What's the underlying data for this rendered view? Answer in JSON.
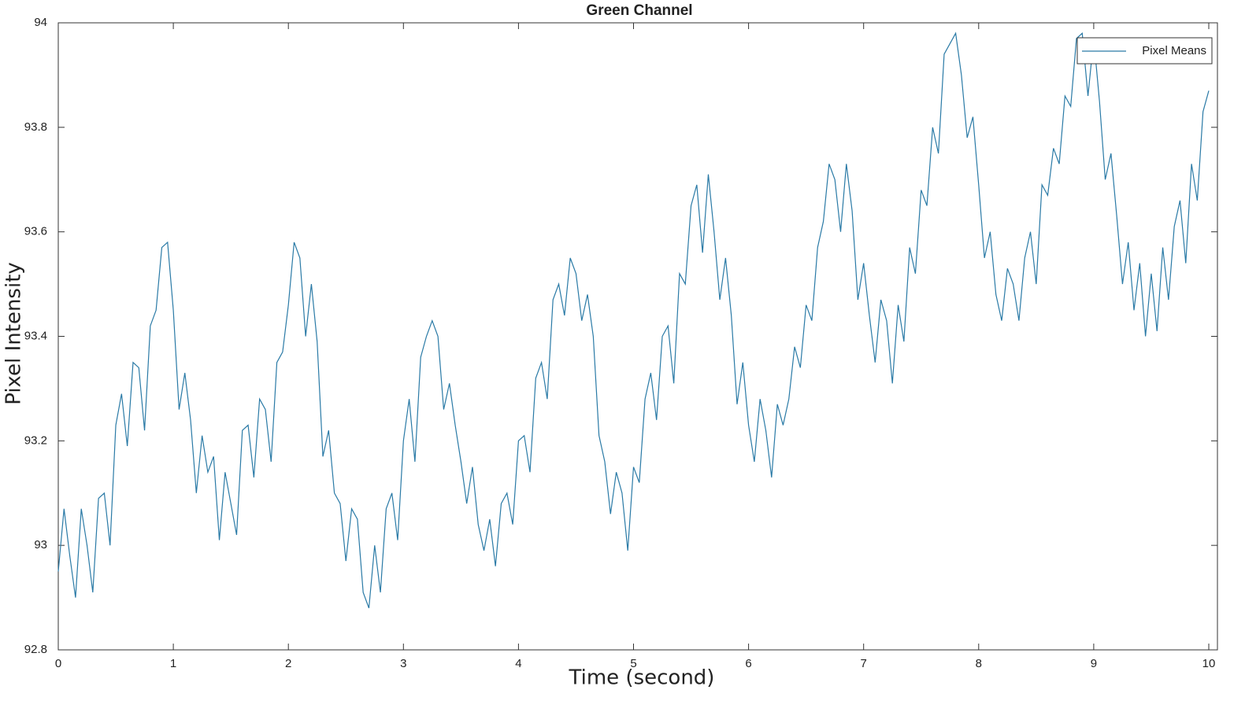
{
  "chart_data": {
    "type": "line",
    "title": "Green Channel",
    "x_label": "Time (second)",
    "y_label": "Pixel Intensity",
    "x": [
      0,
      0.05,
      0.1,
      0.15,
      0.2,
      0.25,
      0.3,
      0.35,
      0.4,
      0.45,
      0.5,
      0.55,
      0.6,
      0.65,
      0.7,
      0.75,
      0.8,
      0.85,
      0.9,
      0.95,
      1,
      1.05,
      1.1,
      1.15,
      1.2,
      1.25,
      1.3,
      1.35,
      1.4,
      1.45,
      1.5,
      1.55,
      1.6,
      1.65,
      1.7,
      1.75,
      1.8,
      1.85,
      1.9,
      1.95,
      2,
      2.05,
      2.1,
      2.15,
      2.2,
      2.25,
      2.3,
      2.35,
      2.4,
      2.45,
      2.5,
      2.55,
      2.6,
      2.65,
      2.7,
      2.75,
      2.8,
      2.85,
      2.9,
      2.95,
      3,
      3.05,
      3.1,
      3.15,
      3.2,
      3.25,
      3.3,
      3.35,
      3.4,
      3.45,
      3.5,
      3.55,
      3.6,
      3.65,
      3.7,
      3.75,
      3.8,
      3.85,
      3.9,
      3.95,
      4,
      4.05,
      4.1,
      4.15,
      4.2,
      4.25,
      4.3,
      4.35,
      4.4,
      4.45,
      4.5,
      4.55,
      4.6,
      4.65,
      4.7,
      4.75,
      4.8,
      4.85,
      4.9,
      4.95,
      5,
      5.05,
      5.1,
      5.15,
      5.2,
      5.25,
      5.3,
      5.35,
      5.4,
      5.45,
      5.5,
      5.55,
      5.6,
      5.65,
      5.7,
      5.75,
      5.8,
      5.85,
      5.9,
      5.95,
      6,
      6.05,
      6.1,
      6.15,
      6.2,
      6.25,
      6.3,
      6.35,
      6.4,
      6.45,
      6.5,
      6.55,
      6.6,
      6.65,
      6.7,
      6.75,
      6.8,
      6.85,
      6.9,
      6.95,
      7,
      7.05,
      7.1,
      7.15,
      7.2,
      7.25,
      7.3,
      7.35,
      7.4,
      7.45,
      7.5,
      7.55,
      7.6,
      7.65,
      7.7,
      7.75,
      7.8,
      7.85,
      7.9,
      7.95,
      8,
      8.05,
      8.1,
      8.15,
      8.2,
      8.25,
      8.3,
      8.35,
      8.4,
      8.45,
      8.5,
      8.55,
      8.6,
      8.65,
      8.7,
      8.75,
      8.8,
      8.85,
      8.9,
      8.95,
      9,
      9.05,
      9.1,
      9.15,
      9.2,
      9.25,
      9.3,
      9.35,
      9.4,
      9.45,
      9.5,
      9.55,
      9.6,
      9.65,
      9.7,
      9.75,
      9.8,
      9.85,
      9.9,
      9.95,
      10
    ],
    "series": [
      {
        "name": "Pixel Means",
        "color": "#2a7aa6",
        "values": [
          92.95,
          93.07,
          92.98,
          92.9,
          93.07,
          93.0,
          92.91,
          93.09,
          93.1,
          93.0,
          93.23,
          93.29,
          93.19,
          93.35,
          93.34,
          93.22,
          93.42,
          93.45,
          93.57,
          93.58,
          93.45,
          93.26,
          93.33,
          93.24,
          93.1,
          93.21,
          93.14,
          93.17,
          93.01,
          93.14,
          93.08,
          93.02,
          93.22,
          93.23,
          93.13,
          93.28,
          93.26,
          93.16,
          93.35,
          93.37,
          93.46,
          93.58,
          93.55,
          93.4,
          93.5,
          93.39,
          93.17,
          93.22,
          93.1,
          93.08,
          92.97,
          93.07,
          93.05,
          92.91,
          92.88,
          93.0,
          92.91,
          93.07,
          93.1,
          93.01,
          93.2,
          93.28,
          93.16,
          93.36,
          93.4,
          93.43,
          93.4,
          93.26,
          93.31,
          93.23,
          93.16,
          93.08,
          93.15,
          93.04,
          92.99,
          93.05,
          92.96,
          93.08,
          93.1,
          93.04,
          93.2,
          93.21,
          93.14,
          93.32,
          93.35,
          93.28,
          93.47,
          93.5,
          93.44,
          93.55,
          93.52,
          93.43,
          93.48,
          93.4,
          93.21,
          93.16,
          93.06,
          93.14,
          93.1,
          92.99,
          93.15,
          93.12,
          93.28,
          93.33,
          93.24,
          93.4,
          93.42,
          93.31,
          93.52,
          93.5,
          93.65,
          93.69,
          93.56,
          93.71,
          93.6,
          93.47,
          93.55,
          93.44,
          93.27,
          93.35,
          93.23,
          93.16,
          93.28,
          93.22,
          93.13,
          93.27,
          93.23,
          93.28,
          93.38,
          93.34,
          93.46,
          93.43,
          93.57,
          93.62,
          93.73,
          93.7,
          93.6,
          93.73,
          93.64,
          93.47,
          93.54,
          93.44,
          93.35,
          93.47,
          93.43,
          93.31,
          93.46,
          93.39,
          93.57,
          93.52,
          93.68,
          93.65,
          93.8,
          93.75,
          93.94,
          93.96,
          93.98,
          93.9,
          93.78,
          93.82,
          93.69,
          93.55,
          93.6,
          93.48,
          93.43,
          93.53,
          93.5,
          93.43,
          93.55,
          93.6,
          93.5,
          93.69,
          93.67,
          93.76,
          93.73,
          93.86,
          93.84,
          93.97,
          93.98,
          93.86,
          93.97,
          93.85,
          93.7,
          93.75,
          93.63,
          93.5,
          93.58,
          93.45,
          93.54,
          93.4,
          93.52,
          93.41,
          93.57,
          93.47,
          93.61,
          93.66,
          93.54,
          93.73,
          93.66,
          93.83,
          93.87
        ]
      }
    ],
    "xlim": [
      0,
      10
    ],
    "xticks": [
      0,
      1,
      2,
      3,
      4,
      5,
      6,
      7,
      8,
      9,
      10
    ],
    "ylim": [
      92.8,
      94
    ],
    "yticks": [
      92.8,
      93,
      93.2,
      93.4,
      93.6,
      93.8,
      94
    ],
    "legend": "upper right"
  }
}
